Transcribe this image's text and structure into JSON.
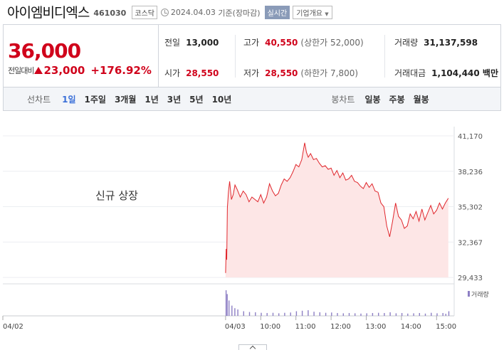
{
  "header": {
    "name": "아이엠비디엑스",
    "code": "461030",
    "market": "코스닥",
    "date": "2024.04.03",
    "basis": "기준(장마감)",
    "realtime_btn": "실시간",
    "company_btn": "기업개요"
  },
  "price": {
    "current": "36,000",
    "change_label": "전일대비",
    "change": "23,000",
    "change_pct": "+176.92%",
    "colors": {
      "up": "#d0021b"
    }
  },
  "stats": {
    "prev_close": {
      "label": "전일",
      "value": "13,000"
    },
    "high": {
      "label": "고가",
      "value": "40,550",
      "sub": "(상한가 52,000)"
    },
    "volume": {
      "label": "거래량",
      "value": "31,137,598"
    },
    "open": {
      "label": "시가",
      "value": "28,550"
    },
    "low": {
      "label": "저가",
      "value": "28,550",
      "sub": "(하한가 7,800)"
    },
    "turnover": {
      "label": "거래대금",
      "value": "1,104,440 백만"
    }
  },
  "tabs": {
    "line_label": "선차트",
    "line_tabs": [
      "1일",
      "1주일",
      "3개월",
      "1년",
      "3년",
      "5년",
      "10년"
    ],
    "active": "1일",
    "candle_label": "봉차트",
    "candle_tabs": [
      "일봉",
      "주봉",
      "월봉"
    ]
  },
  "chart_data": {
    "type": "area",
    "annotation": "신규 상장",
    "volume_legend": "거래량",
    "y_ticks": [
      "41,170",
      "38,236",
      "35,302",
      "32,367",
      "29,433"
    ],
    "ylim": [
      29433,
      41170
    ],
    "x_labels": [
      "04/02",
      "04/03",
      "10:00",
      "11:00",
      "12:00",
      "13:00",
      "14:00",
      "15:00"
    ],
    "x_label_times": [
      -20,
      0,
      60,
      120,
      180,
      240,
      300,
      360
    ],
    "xlim": [
      -380,
      390
    ],
    "series": [
      {
        "x": [
          0,
          1,
          2,
          3,
          5,
          7,
          10,
          13,
          16,
          20,
          25,
          30,
          35,
          40,
          45,
          50,
          55,
          60,
          65,
          70,
          75,
          80,
          85,
          90,
          95,
          100,
          105,
          110,
          115,
          120,
          125,
          130,
          135,
          138,
          141,
          145,
          150,
          155,
          160,
          165,
          170,
          175,
          180,
          185,
          190,
          195,
          200,
          205,
          210,
          215,
          220,
          225,
          230,
          235,
          240,
          245,
          250,
          255,
          260,
          265,
          270,
          275,
          280,
          285,
          290,
          295,
          300,
          305,
          310,
          315,
          320,
          325,
          330,
          335,
          340,
          345,
          350,
          355,
          360,
          365,
          370,
          375,
          380
        ],
        "values": [
          29800,
          31800,
          30900,
          35200,
          36600,
          37400,
          35900,
          36300,
          37100,
          36700,
          36100,
          36600,
          36300,
          35700,
          36100,
          35900,
          35700,
          36300,
          35600,
          36100,
          37200,
          36600,
          36200,
          36400,
          37100,
          37600,
          37400,
          37700,
          38200,
          38800,
          38600,
          39200,
          40600,
          39800,
          39400,
          39700,
          39200,
          39300,
          38900,
          38600,
          38700,
          38400,
          38500,
          37900,
          38300,
          37700,
          38100,
          37500,
          37600,
          37900,
          37400,
          37300,
          37000,
          36800,
          37300,
          36900,
          37200,
          36600,
          36500,
          35600,
          35300,
          33700,
          32800,
          34100,
          35600,
          34500,
          34200,
          33500,
          33700,
          34700,
          34300,
          34900,
          34100,
          35100,
          34200,
          34800,
          35400,
          34700,
          35000,
          35600,
          35100,
          35600,
          36000
        ]
      }
    ],
    "volume": {
      "x": [
        0,
        2,
        5,
        10,
        15,
        20,
        30,
        40,
        50,
        60,
        70,
        80,
        90,
        100,
        110,
        120,
        130,
        140,
        150,
        160,
        170,
        180,
        190,
        200,
        210,
        220,
        230,
        240,
        250,
        260,
        270,
        280,
        290,
        300,
        310,
        320,
        330,
        340,
        350,
        360,
        370,
        375,
        380
      ],
      "values": [
        100,
        85,
        60,
        40,
        30,
        25,
        18,
        15,
        14,
        12,
        11,
        12,
        10,
        12,
        13,
        18,
        20,
        22,
        16,
        14,
        12,
        13,
        11,
        10,
        11,
        10,
        9,
        10,
        11,
        12,
        11,
        14,
        10,
        11,
        9,
        10,
        11,
        9,
        12,
        10,
        11,
        8,
        18
      ]
    }
  }
}
